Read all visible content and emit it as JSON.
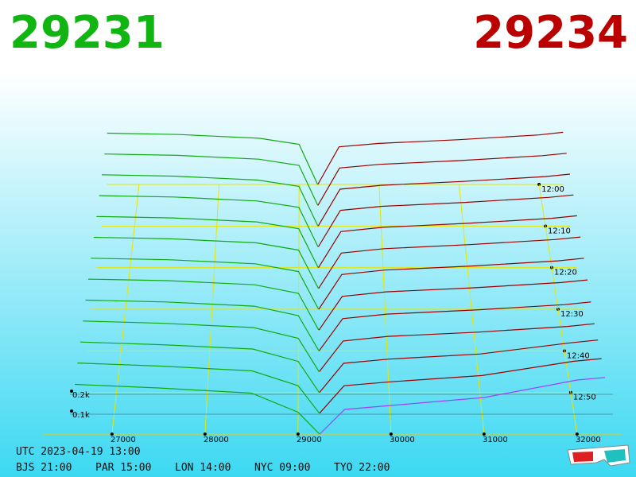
{
  "chart_data": {
    "type": "depth3d",
    "bid": 29231,
    "ask": 29234,
    "bid_color": "#11aa11",
    "ask_color": "#990000",
    "latest_ask_color": "#a040ff",
    "xlim": [
      26600,
      32300
    ],
    "xticks": [
      27000,
      28000,
      29000,
      30000,
      31000,
      32000
    ],
    "tlim": [
      0,
      60
    ],
    "tticks": [
      {
        "value": 0,
        "label": "12:00"
      },
      {
        "value": 10,
        "label": "12:10"
      },
      {
        "value": 20,
        "label": "12:20"
      },
      {
        "value": 30,
        "label": "12:30"
      },
      {
        "value": 40,
        "label": "12:40"
      },
      {
        "value": 50,
        "label": "12:50"
      }
    ],
    "zticks": [
      {
        "value": 200,
        "label": "0.2k"
      },
      {
        "value": 100,
        "label": "0.1k"
      }
    ],
    "bid_prices": [
      26600,
      27500,
      28500,
      29000,
      29231
    ],
    "ask_prices": [
      29234,
      29500,
      30000,
      31000,
      32000,
      32300
    ],
    "snapshots": [
      {
        "t": 0,
        "bids": [
          300,
          292,
          270,
          235,
          0
        ],
        "asks": [
          0,
          220,
          240,
          262,
          290,
          305
        ]
      },
      {
        "t": 5,
        "bids": [
          296,
          288,
          266,
          230,
          0
        ],
        "asks": [
          0,
          215,
          236,
          258,
          286,
          300
        ]
      },
      {
        "t": 10,
        "bids": [
          292,
          284,
          262,
          226,
          0
        ],
        "asks": [
          0,
          210,
          232,
          254,
          282,
          296
        ]
      },
      {
        "t": 15,
        "bids": [
          288,
          280,
          258,
          222,
          0
        ],
        "asks": [
          0,
          205,
          228,
          250,
          278,
          292
        ]
      },
      {
        "t": 20,
        "bids": [
          284,
          276,
          254,
          216,
          0
        ],
        "asks": [
          0,
          200,
          224,
          246,
          274,
          288
        ]
      },
      {
        "t": 25,
        "bids": [
          280,
          272,
          250,
          210,
          0
        ],
        "asks": [
          0,
          194,
          218,
          240,
          268,
          282
        ]
      },
      {
        "t": 30,
        "bids": [
          276,
          268,
          246,
          204,
          0
        ],
        "asks": [
          0,
          188,
          212,
          234,
          262,
          276
        ]
      },
      {
        "t": 35,
        "bids": [
          272,
          264,
          242,
          196,
          0
        ],
        "asks": [
          0,
          180,
          204,
          226,
          254,
          268
        ]
      },
      {
        "t": 40,
        "bids": [
          268,
          258,
          236,
          186,
          0
        ],
        "asks": [
          0,
          170,
          194,
          216,
          244,
          258
        ]
      },
      {
        "t": 45,
        "bids": [
          264,
          252,
          230,
          174,
          0
        ],
        "asks": [
          0,
          160,
          184,
          206,
          236,
          250
        ]
      },
      {
        "t": 50,
        "bids": [
          260,
          246,
          224,
          160,
          0
        ],
        "asks": [
          0,
          150,
          172,
          198,
          256,
          270
        ]
      },
      {
        "t": 55,
        "bids": [
          256,
          240,
          216,
          140,
          0
        ],
        "asks": [
          0,
          140,
          160,
          192,
          265,
          278
        ]
      },
      {
        "t": 60,
        "bids": [
          250,
          232,
          206,
          110,
          0
        ],
        "asks": [
          0,
          124,
          144,
          184,
          272,
          285
        ]
      }
    ]
  },
  "clock": {
    "utc": "UTC 2023-04-19 13:00",
    "zones": [
      "BJS 21:00",
      "PAR 15:00",
      "LON 14:00",
      "NYC 09:00",
      "TYO 22:00"
    ]
  }
}
